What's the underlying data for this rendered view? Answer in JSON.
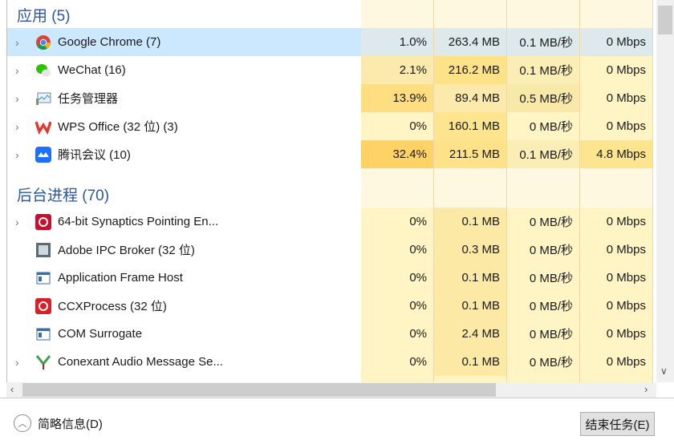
{
  "groups": {
    "apps": "应用 (5)",
    "background": "后台进程 (70)"
  },
  "apps": [
    {
      "name": "Google Chrome (7)",
      "icon": "chrome-icon",
      "expandable": true,
      "selected": true,
      "cpu": "1.0%",
      "mem": "263.4 MB",
      "disk": "0.1 MB/秒",
      "net": "0 Mbps",
      "colors": [
        "#dde9ea",
        "#dde9ea",
        "#dde9ea",
        "#dde9ea"
      ]
    },
    {
      "name": "WeChat (16)",
      "icon": "wechat-icon",
      "expandable": true,
      "cpu": "2.1%",
      "mem": "216.2 MB",
      "disk": "0.1 MB/秒",
      "net": "0 Mbps",
      "colors": [
        "#fbeaab",
        "#fde28a",
        "#fbeeb4",
        "#fff4c4"
      ]
    },
    {
      "name": "任务管理器",
      "icon": "task-manager-icon",
      "expandable": true,
      "cpu": "13.9%",
      "mem": "89.4 MB",
      "disk": "0.5 MB/秒",
      "net": "0 Mbps",
      "colors": [
        "#ffde82",
        "#fbeaab",
        "#f9e9a8",
        "#fff4c4"
      ]
    },
    {
      "name": "WPS Office (32 位) (3)",
      "icon": "wps-icon",
      "expandable": true,
      "cpu": "0%",
      "mem": "160.1 MB",
      "disk": "0 MB/秒",
      "net": "0 Mbps",
      "colors": [
        "#fff4c4",
        "#fde590",
        "#fff4c4",
        "#fff4c4"
      ]
    },
    {
      "name": "腾讯会议 (10)",
      "icon": "tencent-meeting-icon",
      "expandable": true,
      "cpu": "32.4%",
      "mem": "211.5 MB",
      "disk": "0.1 MB/秒",
      "net": "4.8 Mbps",
      "colors": [
        "#ffd266",
        "#fde28a",
        "#fbeeb4",
        "#fde590"
      ]
    }
  ],
  "background": [
    {
      "name": "64-bit Synaptics Pointing En...",
      "icon": "synaptics-icon",
      "expandable": true,
      "cpu": "0%",
      "mem": "0.1 MB",
      "disk": "0 MB/秒",
      "net": "0 Mbps"
    },
    {
      "name": "Adobe IPC Broker (32 位)",
      "icon": "adobe-ipc-icon",
      "expandable": false,
      "cpu": "0%",
      "mem": "0.3 MB",
      "disk": "0 MB/秒",
      "net": "0 Mbps"
    },
    {
      "name": "Application Frame Host",
      "icon": "window-icon",
      "expandable": false,
      "cpu": "0%",
      "mem": "0.1 MB",
      "disk": "0 MB/秒",
      "net": "0 Mbps"
    },
    {
      "name": "CCXProcess (32 位)",
      "icon": "creative-cloud-icon",
      "expandable": false,
      "cpu": "0%",
      "mem": "0.1 MB",
      "disk": "0 MB/秒",
      "net": "0 Mbps"
    },
    {
      "name": "COM Surrogate",
      "icon": "window-icon",
      "expandable": false,
      "cpu": "0%",
      "mem": "2.4 MB",
      "disk": "0 MB/秒",
      "net": "0 Mbps"
    },
    {
      "name": "Conexant Audio Message Se...",
      "icon": "conexant-icon",
      "expandable": true,
      "cpu": "0%",
      "mem": "0.1 MB",
      "disk": "0 MB/秒",
      "net": "0 Mbps"
    }
  ],
  "bg_colors": [
    "#fff4c4",
    "#fde9a6",
    "#fff4c4",
    "#fff4c4"
  ],
  "footer": {
    "brief": "简略信息(D)",
    "end_task": "结束任务(E)"
  }
}
